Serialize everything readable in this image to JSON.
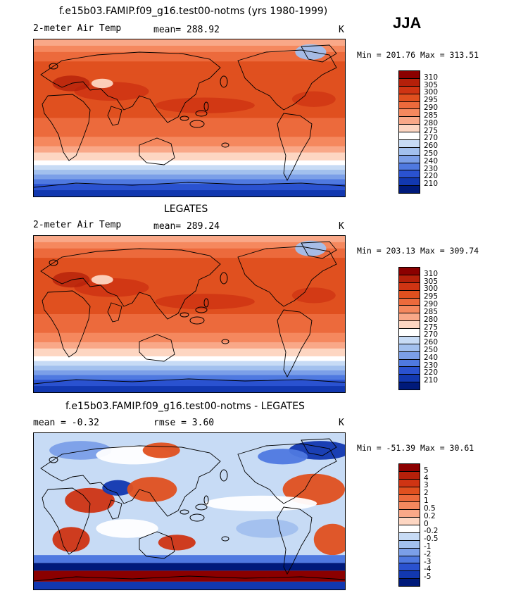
{
  "season": "JJA",
  "chart_data": [
    {
      "type": "heatmap",
      "title": "f.e15b03.FAMIP.f09_g16.test00-notms (yrs 1980-1999)",
      "left_label": "2-meter Air Temp",
      "mean_text": "mean= 288.92",
      "units": "K",
      "minmax_text": "Min = 201.76 Max = 313.51",
      "colorbar": {
        "levels": [
          "310",
          "305",
          "300",
          "295",
          "290",
          "285",
          "280",
          "275",
          "270",
          "260",
          "250",
          "240",
          "230",
          "220",
          "210"
        ],
        "colors": [
          "#8b0000",
          "#b5200a",
          "#cf3413",
          "#e0501f",
          "#ec6a3c",
          "#f5885e",
          "#f9a888",
          "#fdd6c2",
          "#ffffff",
          "#c7dbf5",
          "#a2c0ee",
          "#7b9fe8",
          "#4f79e0",
          "#2a52d0",
          "#1238b0",
          "#001a7a"
        ]
      }
    },
    {
      "type": "heatmap",
      "title": "LEGATES",
      "left_label": "2-meter Air Temp",
      "mean_text": "mean= 289.24",
      "units": "K",
      "minmax_text": "Min = 203.13 Max = 309.74",
      "colorbar": {
        "levels": [
          "310",
          "305",
          "300",
          "295",
          "290",
          "285",
          "280",
          "275",
          "270",
          "260",
          "250",
          "240",
          "230",
          "220",
          "210"
        ],
        "colors": [
          "#8b0000",
          "#b5200a",
          "#cf3413",
          "#e0501f",
          "#ec6a3c",
          "#f5885e",
          "#f9a888",
          "#fdd6c2",
          "#ffffff",
          "#c7dbf5",
          "#a2c0ee",
          "#7b9fe8",
          "#4f79e0",
          "#2a52d0",
          "#1238b0",
          "#001a7a"
        ]
      }
    },
    {
      "type": "heatmap",
      "title": "f.e15b03.FAMIP.f09_g16.test00-notms - LEGATES",
      "mean_text": "mean =   -0.32",
      "rmse_text": "rmse =    3.60",
      "units": "K",
      "minmax_text": "Min = -51.39 Max =  30.61",
      "colorbar": {
        "levels": [
          "5",
          "4",
          "3",
          "2",
          "1",
          "0.5",
          "0.2",
          "0",
          "-0.2",
          "-0.5",
          "-1",
          "-2",
          "-3",
          "-4",
          "-5"
        ],
        "colors": [
          "#8b0000",
          "#b5200a",
          "#cf3413",
          "#e0501f",
          "#ec6a3c",
          "#f5885e",
          "#f9a888",
          "#fdd6c2",
          "#ffffff",
          "#c7dbf5",
          "#a2c0ee",
          "#7b9fe8",
          "#4f79e0",
          "#2a52d0",
          "#1238b0",
          "#001a7a"
        ]
      }
    }
  ]
}
